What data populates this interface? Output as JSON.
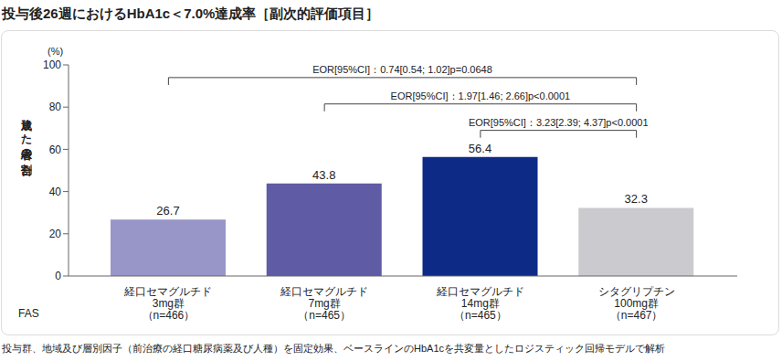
{
  "chart_data": {
    "type": "bar",
    "title": "投与後26週におけるHbA1c＜7.0%達成率［副次的評価項目］",
    "ylabel": "達成した患者の割合",
    "y_unit": "(%)",
    "categories": [
      "経口セマグルチド\n3mg群\n（n=466）",
      "経口セマグルチド\n7mg群\n（n=465）",
      "経口セマグルチド\n14mg群\n（n=465）",
      "シタグリプチン\n100mg群\n（n=467）"
    ],
    "values": [
      26.7,
      43.8,
      56.4,
      32.3
    ],
    "colors": [
      "#9896c8",
      "#5f5ba5",
      "#0c2a86",
      "#cbcbcf"
    ],
    "ylim": [
      0,
      100
    ],
    "yticks": [
      0,
      20,
      40,
      60,
      80,
      100
    ],
    "grid": false,
    "data_labels": true,
    "comparisons": [
      {
        "from": "経口セマグルチド\n3mg群\n（n=466）",
        "to": "シタグリプチン\n100mg群\n（n=467）",
        "label": "EOR[95%CI]：0.74[0.54; 1.02]p=0.0648"
      },
      {
        "from": "経口セマグルチド\n7mg群\n（n=465）",
        "to": "シタグリプチン\n100mg群\n（n=467）",
        "label": "EOR[95%CI]：1.97[1.46; 2.66]p<0.0001"
      },
      {
        "from": "経口セマグルチド\n14mg群\n（n=465）",
        "to": "シタグリプチン\n100mg群\n（n=467）",
        "label": "EOR[95%CI]：3.23[2.39; 4.37]p<0.0001"
      }
    ],
    "population": "FAS",
    "footnote": "投与群、地域及び層別因子（前治療の経口糖尿病薬及び人種）を固定効果、ベースラインのHbA1cを共変量としたロジスティック回帰モデルで解析"
  }
}
